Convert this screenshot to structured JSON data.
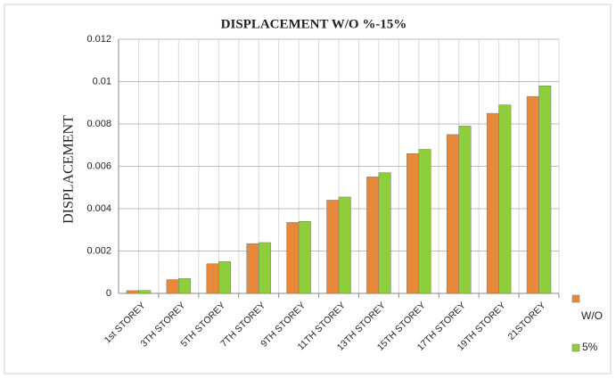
{
  "chart_data": {
    "type": "bar",
    "title": "DISPLACEMENT W/O %-15%",
    "y_label": "DISPLACEMENT",
    "categories": [
      "1st STOREY",
      "3TH STOREY",
      "5TH STOREY",
      "7TH STOREY",
      "9TH STOREY",
      "11TH STOREY",
      "13TH STOREY",
      "15TH STOREY",
      "17TH STOREY",
      "19TH STOREY",
      "21STOREY"
    ],
    "series": [
      {
        "name": "W/O",
        "color": "#e8883a",
        "values": [
          0.00013,
          0.00065,
          0.0014,
          0.00235,
          0.00335,
          0.0044,
          0.0055,
          0.0066,
          0.0075,
          0.0085,
          0.0093
        ]
      },
      {
        "name": "5%",
        "color": "#8dce3a",
        "values": [
          0.00014,
          0.0007,
          0.0015,
          0.0024,
          0.0034,
          0.00455,
          0.0057,
          0.0068,
          0.0079,
          0.0089,
          0.0098
        ]
      }
    ],
    "ylim": [
      0,
      0.012
    ],
    "yticks": [
      0,
      0.002,
      0.004,
      0.006,
      0.008,
      0.01,
      0.012
    ],
    "grid": true,
    "legend": "right"
  }
}
